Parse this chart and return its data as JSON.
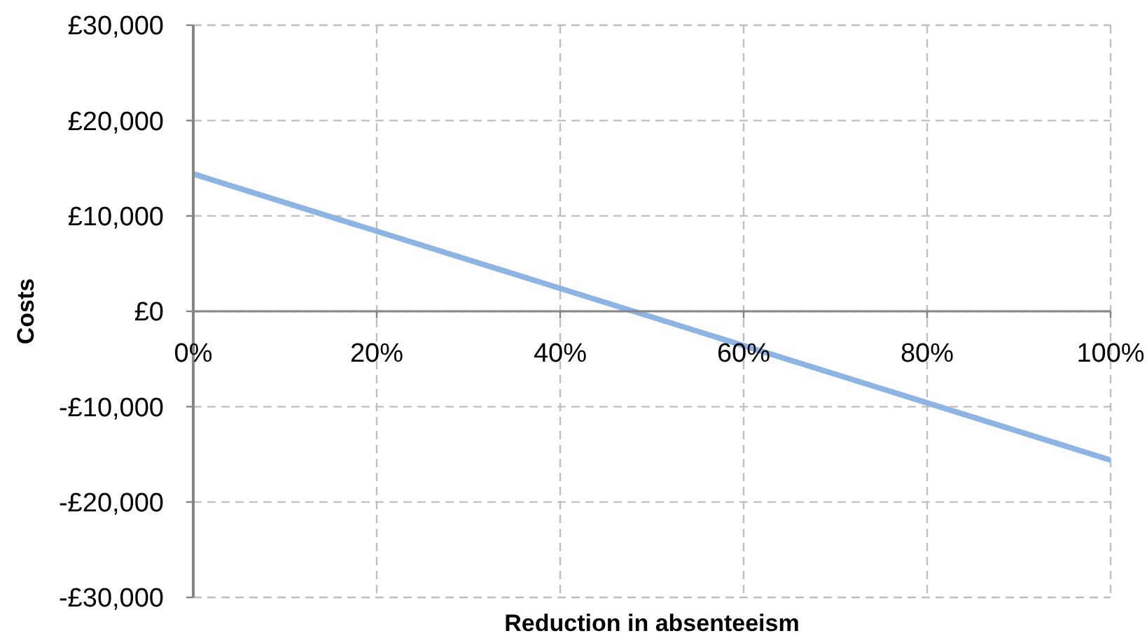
{
  "chart_data": {
    "type": "line",
    "xlabel": "Reduction in absenteeism",
    "ylabel": "Costs",
    "x": [
      0,
      100
    ],
    "values": [
      14400,
      -15600
    ],
    "color": "#8eb4e3",
    "xlim": [
      0,
      100
    ],
    "xticks": [
      {
        "value": 0,
        "label": "0%"
      },
      {
        "value": 20,
        "label": "20%"
      },
      {
        "value": 40,
        "label": "40%"
      },
      {
        "value": 60,
        "label": "60%"
      },
      {
        "value": 80,
        "label": "80%"
      },
      {
        "value": 100,
        "label": "100%"
      }
    ],
    "ylim": [
      -30000,
      30000
    ],
    "yticks": [
      {
        "value": -30000,
        "label": "-£30,000"
      },
      {
        "value": -20000,
        "label": "-£20,000"
      },
      {
        "value": -10000,
        "label": "-£10,000"
      },
      {
        "value": 0,
        "label": "£0"
      },
      {
        "value": 10000,
        "label": "£10,000"
      },
      {
        "value": 20000,
        "label": "£20,000"
      },
      {
        "value": 30000,
        "label": "£30,000"
      }
    ],
    "grid": true
  }
}
